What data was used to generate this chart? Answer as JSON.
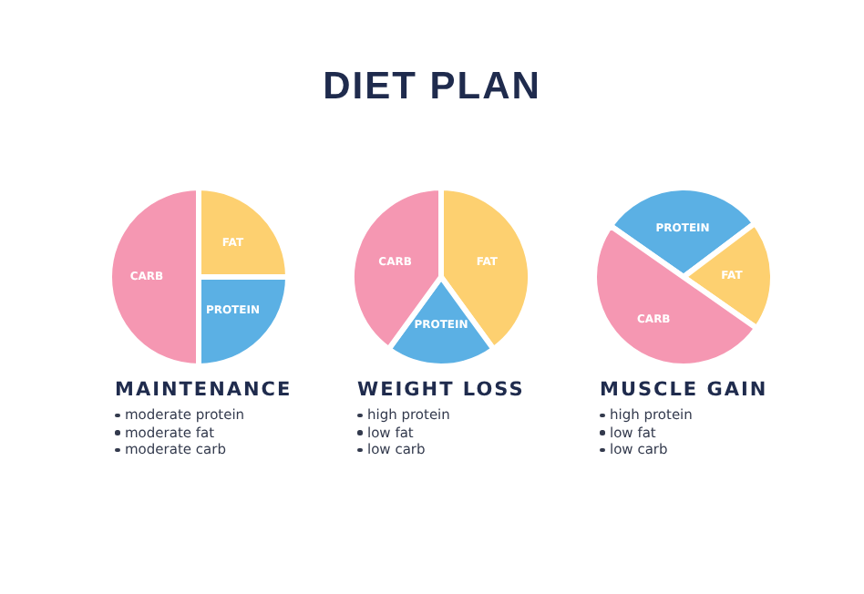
{
  "chart_data": [
    {
      "type": "other",
      "title": "DIET PLAN"
    },
    {
      "type": "pie",
      "title": "MAINTENANCE",
      "categories": [
        "FAT",
        "PROTEIN",
        "CARB"
      ],
      "values": [
        25,
        25,
        50
      ],
      "colors": [
        "#fdd070",
        "#5bb0e4",
        "#f597b2"
      ],
      "data_labels": false,
      "annotations": [
        "moderate protein",
        "moderate fat",
        "moderate carb"
      ]
    },
    {
      "type": "pie",
      "title": "WEIGHT LOSS",
      "categories": [
        "FAT",
        "PROTEIN",
        "CARB"
      ],
      "values": [
        40,
        20,
        40
      ],
      "colors": [
        "#fdd070",
        "#5bb0e4",
        "#f597b2"
      ],
      "data_labels": false,
      "annotations": [
        "high protein",
        "low fat",
        "low carb"
      ]
    },
    {
      "type": "pie",
      "title": "MUSCLE GAIN",
      "categories": [
        "PROTEIN",
        "FAT",
        "CARB"
      ],
      "values": [
        30,
        20,
        50
      ],
      "colors": [
        "#5bb0e4",
        "#fdd070",
        "#f597b2"
      ],
      "data_labels": false,
      "annotations": [
        "high protein",
        "low fat",
        "low carb"
      ]
    }
  ]
}
